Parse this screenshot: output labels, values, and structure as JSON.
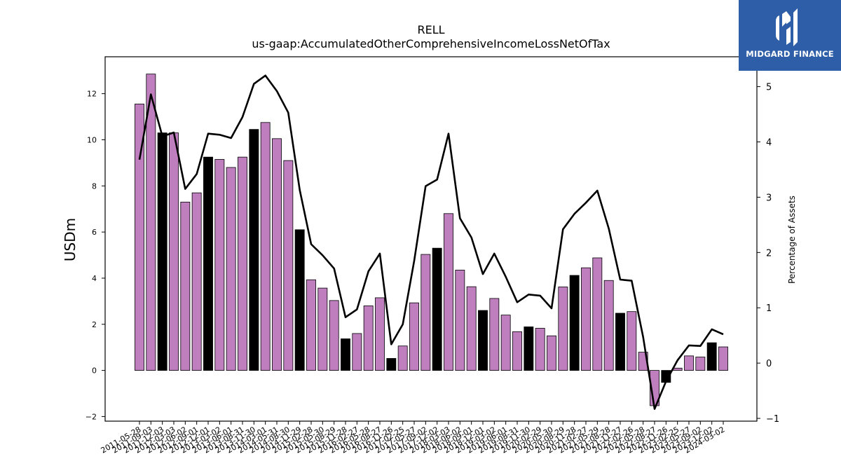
{
  "brand": {
    "name": "MIDGARD FINANCE",
    "bg_color": "#2f5ea8"
  },
  "chart_data": {
    "type": "bar",
    "title": "RELL",
    "subtitle": "us-gaap:AccumulatedOtherComprehensiveIncomeLossNetOfTax",
    "ylabel": "USDm",
    "y2label": "Percentage of Assets",
    "ylim": [
      -2.2,
      13.6
    ],
    "y2lim": [
      -1.05,
      5.54
    ],
    "yticks": [
      -2,
      0,
      2,
      4,
      6,
      8,
      10,
      12
    ],
    "y2ticks": [
      -1,
      0,
      1,
      2,
      3,
      4,
      5
    ],
    "colors": {
      "default_bar": "#bf7fbf",
      "highlight_bar": "#000000",
      "line": "#000000"
    },
    "categories": [
      "2011-05-28",
      "2011-09-03",
      "2011-12-03",
      "2012-03-03",
      "2012-06-02",
      "2012-09-01",
      "2012-12-01",
      "2013-03-02",
      "2013-06-01",
      "2013-08-31",
      "2013-11-30",
      "2014-03-01",
      "2014-05-31",
      "2014-08-30",
      "2014-11-29",
      "2015-02-28",
      "2015-05-30",
      "2015-08-29",
      "2015-11-28",
      "2016-02-27",
      "2016-05-28",
      "2016-08-27",
      "2016-11-26",
      "2017-02-25",
      "2017-05-27",
      "2017-09-02",
      "2017-12-02",
      "2018-03-03",
      "2018-06-02",
      "2018-09-01",
      "2018-12-01",
      "2019-03-02",
      "2019-06-01",
      "2019-08-31",
      "2019-11-30",
      "2020-02-29",
      "2020-05-30",
      "2020-08-29",
      "2020-11-28",
      "2021-02-27",
      "2021-05-29",
      "2021-08-28",
      "2021-11-27",
      "2022-02-26",
      "2022-05-28",
      "2022-08-27",
      "2022-11-26",
      "2023-02-25",
      "2023-05-27",
      "2023-09-02",
      "2023-12-02",
      "2024-03-02"
    ],
    "series": [
      {
        "kind": "bar",
        "axis": "left",
        "values": [
          11.55,
          12.85,
          10.3,
          10.3,
          7.3,
          7.7,
          9.25,
          9.15,
          8.8,
          9.25,
          10.45,
          10.75,
          10.05,
          9.1,
          6.1,
          3.93,
          3.57,
          3.03,
          1.37,
          1.6,
          2.8,
          3.15,
          0.52,
          1.06,
          2.93,
          5.03,
          5.3,
          6.8,
          4.35,
          3.63,
          2.6,
          3.12,
          2.4,
          1.68,
          1.89,
          1.83,
          1.5,
          3.62,
          4.12,
          4.45,
          4.88,
          3.9,
          2.48,
          2.55,
          0.79,
          -1.53,
          -0.52,
          0.1,
          0.63,
          0.58,
          1.2,
          1.02
        ],
        "highlight": [
          false,
          false,
          true,
          false,
          false,
          false,
          true,
          false,
          false,
          false,
          true,
          false,
          false,
          false,
          true,
          false,
          false,
          false,
          true,
          false,
          false,
          false,
          true,
          false,
          false,
          false,
          true,
          false,
          false,
          false,
          true,
          false,
          false,
          false,
          true,
          false,
          false,
          false,
          true,
          false,
          false,
          false,
          true,
          false,
          false,
          false,
          true,
          false,
          false,
          false,
          true,
          false
        ]
      },
      {
        "kind": "line",
        "axis": "right",
        "values": [
          3.68,
          4.86,
          4.1,
          4.17,
          3.15,
          3.42,
          4.15,
          4.13,
          4.07,
          4.45,
          5.05,
          5.2,
          4.92,
          4.53,
          3.13,
          2.15,
          1.95,
          1.71,
          0.83,
          0.97,
          1.66,
          1.98,
          0.34,
          0.7,
          1.85,
          3.2,
          3.32,
          4.15,
          2.62,
          2.27,
          1.61,
          1.98,
          1.56,
          1.1,
          1.24,
          1.22,
          0.99,
          2.42,
          2.7,
          2.9,
          3.12,
          2.43,
          1.51,
          1.49,
          0.47,
          -0.83,
          -0.33,
          0.05,
          0.32,
          0.31,
          0.61,
          0.52
        ]
      }
    ]
  }
}
